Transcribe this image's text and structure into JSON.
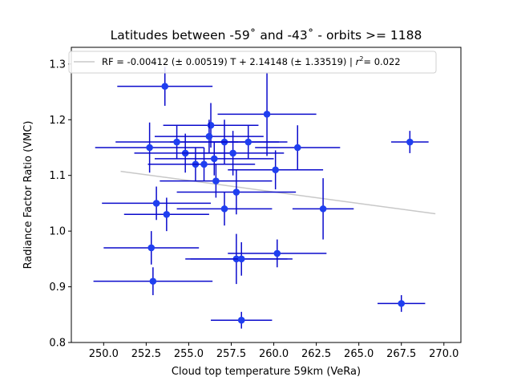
{
  "chart_data": {
    "type": "scatter",
    "title": "Latitudes between -59˚ and -43˚ - orbits >= 1188",
    "xlabel": "Cloud top temperature 59km (VeRa)",
    "ylabel": "Radiance Factor Ratio (VMC)",
    "xlim": [
      248.1,
      271.0
    ],
    "ylim": [
      0.8,
      1.33
    ],
    "xticks": [
      "250.0",
      "252.5",
      "255.0",
      "257.5",
      "260.0",
      "262.5",
      "265.0",
      "267.5",
      "270.0"
    ],
    "yticks": [
      "0.8",
      "0.9",
      "1.0",
      "1.1",
      "1.2",
      "1.3"
    ],
    "grid": false,
    "legend_position": "top-left",
    "colors": {
      "points": "#1f3ff0",
      "errorbars": "#0a0acc",
      "fit": "#c8c8c8"
    },
    "fit": {
      "label_main": "RF = -0.00412 (± 0.00519) T + 2.14148 (± 1.33519) | ",
      "label_r2": "= 0.022",
      "slope": -0.00412,
      "intercept": 2.14148,
      "x_range": [
        251.0,
        269.5
      ]
    },
    "points": [
      {
        "x": 253.6,
        "y": 1.26,
        "xerr": 2.8,
        "yerr": 0.035
      },
      {
        "x": 259.6,
        "y": 1.21,
        "xerr": 2.9,
        "yerr": 0.075
      },
      {
        "x": 256.3,
        "y": 1.19,
        "xerr": 2.8,
        "yerr": 0.04
      },
      {
        "x": 257.1,
        "y": 1.16,
        "xerr": 3.2,
        "yerr": 0.04
      },
      {
        "x": 256.2,
        "y": 1.17,
        "xerr": 3.2,
        "yerr": 0.03
      },
      {
        "x": 254.3,
        "y": 1.16,
        "xerr": 3.6,
        "yerr": 0.03
      },
      {
        "x": 258.5,
        "y": 1.16,
        "xerr": 2.3,
        "yerr": 0.03
      },
      {
        "x": 252.7,
        "y": 1.15,
        "xerr": 3.2,
        "yerr": 0.045
      },
      {
        "x": 261.4,
        "y": 1.15,
        "xerr": 2.5,
        "yerr": 0.04
      },
      {
        "x": 254.8,
        "y": 1.14,
        "xerr": 3.0,
        "yerr": 0.035
      },
      {
        "x": 257.6,
        "y": 1.14,
        "xerr": 3.0,
        "yerr": 0.04
      },
      {
        "x": 256.5,
        "y": 1.13,
        "xerr": 3.5,
        "yerr": 0.03
      },
      {
        "x": 255.4,
        "y": 1.12,
        "xerr": 2.8,
        "yerr": 0.03
      },
      {
        "x": 255.9,
        "y": 1.12,
        "xerr": 3.0,
        "yerr": 0.03
      },
      {
        "x": 260.1,
        "y": 1.11,
        "xerr": 2.8,
        "yerr": 0.035
      },
      {
        "x": 256.6,
        "y": 1.09,
        "xerr": 3.3,
        "yerr": 0.03
      },
      {
        "x": 257.8,
        "y": 1.07,
        "xerr": 3.5,
        "yerr": 0.04
      },
      {
        "x": 253.1,
        "y": 1.05,
        "xerr": 3.2,
        "yerr": 0.03
      },
      {
        "x": 257.1,
        "y": 1.04,
        "xerr": 2.8,
        "yerr": 0.03
      },
      {
        "x": 262.9,
        "y": 1.04,
        "xerr": 1.8,
        "yerr": 0.055
      },
      {
        "x": 253.7,
        "y": 1.03,
        "xerr": 2.5,
        "yerr": 0.03
      },
      {
        "x": 252.8,
        "y": 0.97,
        "xerr": 2.8,
        "yerr": 0.03
      },
      {
        "x": 260.2,
        "y": 0.96,
        "xerr": 2.9,
        "yerr": 0.025
      },
      {
        "x": 257.8,
        "y": 0.95,
        "xerr": 3.0,
        "yerr": 0.045
      },
      {
        "x": 258.1,
        "y": 0.95,
        "xerr": 3.0,
        "yerr": 0.03
      },
      {
        "x": 252.9,
        "y": 0.91,
        "xerr": 3.5,
        "yerr": 0.025
      },
      {
        "x": 258.1,
        "y": 0.84,
        "xerr": 1.8,
        "yerr": 0.015
      },
      {
        "x": 267.5,
        "y": 0.87,
        "xerr": 1.4,
        "yerr": 0.015
      },
      {
        "x": 268.0,
        "y": 1.16,
        "xerr": 1.1,
        "yerr": 0.02
      }
    ]
  }
}
